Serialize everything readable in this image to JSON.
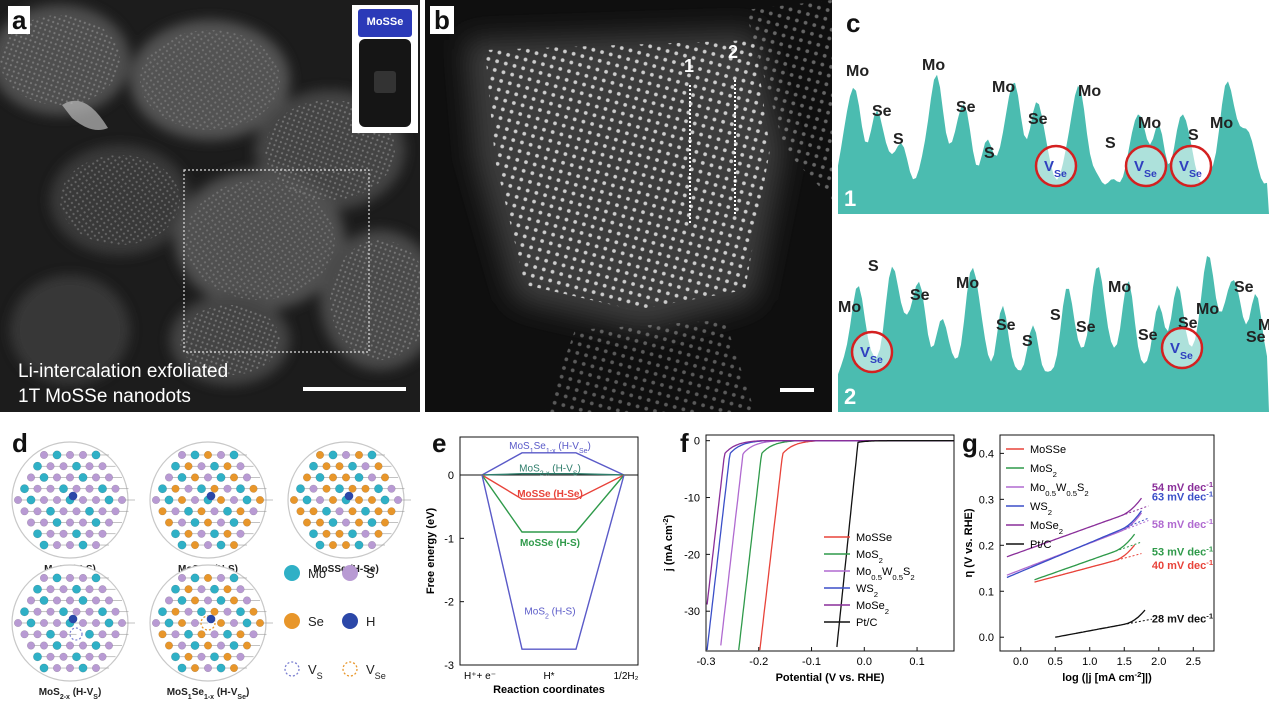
{
  "panel_letters": {
    "a": "a",
    "b": "b",
    "c": "c",
    "d": "d",
    "e": "e",
    "f": "f",
    "g": "g"
  },
  "panel_a": {
    "bottle_label": "MoSSe",
    "caption_line1": "Li-intercalation exfoliated",
    "caption_line2": "1T MoSSe nanodots"
  },
  "panel_b": {
    "marker_1": "1",
    "marker_2": "2"
  },
  "panel_c": {
    "profile1": {
      "index": "1",
      "labels": [
        "Mo",
        "Se",
        "S",
        "Mo",
        "Se",
        "S",
        "Mo",
        "Se",
        "Mo",
        "S",
        "Mo",
        "S",
        "Mo"
      ],
      "vacancy": "V",
      "vacancy_sub": "Se"
    },
    "profile2": {
      "index": "2",
      "labels": [
        "Mo",
        "S",
        "Se",
        "Mo",
        "Se",
        "S",
        "S",
        "Se",
        "Mo",
        "Se",
        "Se",
        "Mo",
        "Se",
        "Mo",
        "Se"
      ],
      "vacancy": "V",
      "vacancy_sub": "Se"
    },
    "fill_color": "#4bbcb0"
  },
  "panel_d": {
    "structures": [
      {
        "main": "MoS",
        "sub": "2",
        "tail": " (H-S)"
      },
      {
        "main": "MoSSe (H-S)"
      },
      {
        "main": "MoSSe (H-Se)"
      },
      {
        "main": "MoS",
        "sub": "2-x",
        "tail": " (H-V",
        "tailsub": "S",
        "end": ")"
      },
      {
        "main": "MoS",
        "sub": "1",
        "mid": "Se",
        "sub2": "1-x",
        "tail": " (H-V",
        "tailsub": "Se",
        "end": ")"
      }
    ],
    "legend": [
      {
        "label": "Mo",
        "color": "#2fb0c6"
      },
      {
        "label": "S",
        "color": "#b89ad3"
      },
      {
        "label": "Se",
        "color": "#e8962a"
      },
      {
        "label": "H",
        "color": "#2b47a8"
      },
      {
        "label": "V",
        "sub": "S",
        "color": "#7a7fd0"
      },
      {
        "label": "V",
        "sub": "Se",
        "color": "#e8962a"
      }
    ]
  },
  "chart_data": [
    {
      "panel": "e",
      "type": "line",
      "ylabel": "Free energy (eV)",
      "xlabel": "Reaction coordinates",
      "x_categories": [
        "H⁺+ e⁻",
        "H*",
        "1/2H₂"
      ],
      "ylim": [
        -3,
        0.6
      ],
      "yticks": [
        0,
        -1,
        -2,
        -3
      ],
      "series": [
        {
          "name": "MoS1Se1-x (H-VSe)",
          "value": 0.35,
          "color": "#5a5ac8"
        },
        {
          "name": "MoS2-x (H-VS)",
          "value": 0.02,
          "color": "#2e7d6b"
        },
        {
          "name": "MoSSe (H-Se)",
          "value": -0.38,
          "color": "#e8433a"
        },
        {
          "name": "MoSSe (H-S)",
          "value": -0.9,
          "color": "#2f9a4a"
        },
        {
          "name": "MoS2 (H-S)",
          "value": -2.75,
          "color": "#5a5ac8"
        }
      ],
      "labels": {
        "s1": {
          "a": "MoS",
          "a_sub": "1",
          "b": "Se",
          "b_sub": "1-x",
          "c": " (H-V",
          "c_sub": "Se",
          "d": ")"
        },
        "s2": {
          "a": "MoS",
          "a_sub": "2-x",
          "c": " (H-V",
          "c_sub": "S",
          "d": ")"
        },
        "s3": "MoSSe (H-Se)",
        "s4": "MoSSe (H-S)",
        "s5": {
          "a": "MoS",
          "a_sub": "2",
          "c": " (H-S)"
        }
      }
    },
    {
      "panel": "f",
      "type": "line",
      "ylabel": "j (mA cm⁻²)",
      "xlabel": "Potential (V vs. RHE)",
      "xlim": [
        -0.3,
        0.17
      ],
      "ylim": [
        -37,
        1
      ],
      "xticks": [
        -0.3,
        -0.2,
        -0.1,
        0.0,
        0.1
      ],
      "yticks": [
        0,
        -10,
        -20,
        -30
      ],
      "series": [
        {
          "name": "MoSSe",
          "onset": -0.115,
          "color": "#e8433a"
        },
        {
          "name": "MoS2",
          "onset": -0.155,
          "color": "#2f9a4a"
        },
        {
          "name": "Mo0.5W0.5S2",
          "onset": -0.19,
          "color": "#b06ad0"
        },
        {
          "name": "WS2",
          "onset": -0.215,
          "color": "#3b4fc8"
        },
        {
          "name": "MoSe2",
          "onset": -0.225,
          "color": "#8a2f9a"
        },
        {
          "name": "Pt/C",
          "onset": -0.012,
          "color": "#111111"
        }
      ],
      "legend_labels": [
        {
          "a": "MoSSe"
        },
        {
          "a": "MoS",
          "s": "2"
        },
        {
          "a": "Mo",
          "s": "0.5",
          "b": "W",
          "s2": "0.5",
          "c": "S",
          "s3": "2"
        },
        {
          "a": "WS",
          "s": "2"
        },
        {
          "a": "MoSe",
          "s": "2"
        },
        {
          "a": "Pt/C"
        }
      ]
    },
    {
      "panel": "g",
      "type": "line",
      "ylabel": "η (V vs. RHE)",
      "xlabel": "log (|j [mA cm⁻²]|)",
      "xlim": [
        -0.3,
        2.8
      ],
      "ylim": [
        -0.03,
        0.44
      ],
      "xticks": [
        0.0,
        0.5,
        1.0,
        1.5,
        2.0,
        2.5
      ],
      "yticks": [
        0.0,
        0.1,
        0.2,
        0.3,
        0.4
      ],
      "series": [
        {
          "name": "MoSSe",
          "slope_label": "40  mV dec⁻¹",
          "slope": 0.04,
          "x0": 0.2,
          "y0": 0.12,
          "x1": 1.7,
          "color": "#e8433a"
        },
        {
          "name": "MoS2",
          "slope_label": "53  mV dec⁻¹",
          "slope": 0.053,
          "x0": 0.2,
          "y0": 0.125,
          "x1": 1.7,
          "color": "#2f9a4a"
        },
        {
          "name": "Mo0.5W0.5S2",
          "slope_label": "58  mV dec⁻¹",
          "slope": 0.058,
          "x0": -0.2,
          "y0": 0.135,
          "x1": 1.8,
          "color": "#b06ad0"
        },
        {
          "name": "WS2",
          "slope_label": "63  mV dec⁻¹",
          "slope": 0.063,
          "x0": -0.2,
          "y0": 0.13,
          "x1": 1.8,
          "color": "#3b4fc8"
        },
        {
          "name": "MoSe2",
          "slope_label": "54  mV dec⁻¹",
          "slope": 0.054,
          "x0": -0.2,
          "y0": 0.175,
          "x1": 1.8,
          "color": "#8a2f9a"
        },
        {
          "name": "Pt/C",
          "slope_label": "28  mV dec⁻¹",
          "slope": 0.028,
          "x0": 0.5,
          "y0": 0.0,
          "x1": 1.85,
          "color": "#111111"
        }
      ],
      "legend_labels": [
        {
          "a": "MoSSe"
        },
        {
          "a": "MoS",
          "s": "2"
        },
        {
          "a": "Mo",
          "s": "0.5",
          "b": "W",
          "s2": "0.5",
          "c": "S",
          "s3": "2"
        },
        {
          "a": "WS",
          "s": "2"
        },
        {
          "a": "MoSe",
          "s": "2"
        },
        {
          "a": "Pt/C"
        }
      ]
    }
  ]
}
